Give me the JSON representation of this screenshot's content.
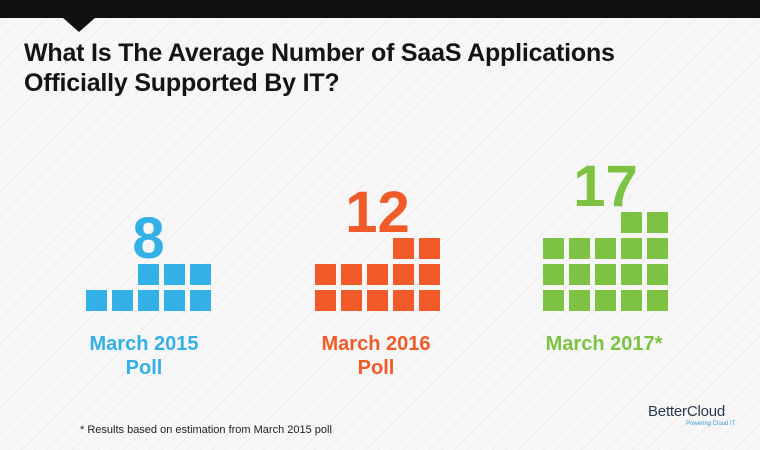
{
  "title": {
    "line1": "What Is The Average Number of SaaS Applications",
    "line2": "Officially Supported By IT?"
  },
  "chart_data": {
    "type": "bar",
    "title": "What Is The Average Number of SaaS Applications Officially Supported By IT?",
    "categories": [
      [
        "March 2015",
        "Poll"
      ],
      [
        "March 2016",
        "Poll"
      ],
      [
        "March 2017*"
      ]
    ],
    "values": [
      8,
      12,
      17
    ],
    "colors": [
      "#33b1e6",
      "#f15a29",
      "#7dc242"
    ],
    "ylabel": "",
    "xlabel": ""
  },
  "footnote": "* Results based on estimation from March 2015 poll",
  "logo": {
    "name": "BetterCloud",
    "tagline": "Powering Cloud IT"
  }
}
